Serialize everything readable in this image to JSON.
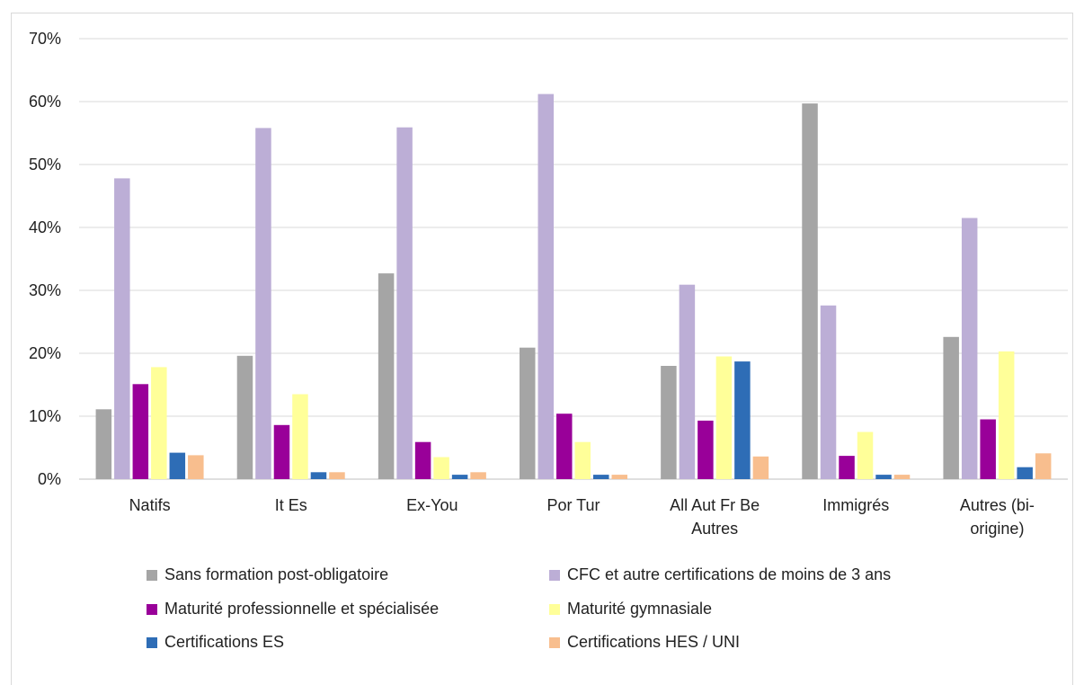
{
  "chart_data": {
    "type": "bar",
    "categories": [
      [
        "Natifs"
      ],
      [
        "It Es"
      ],
      [
        "Ex-You"
      ],
      [
        "Por Tur"
      ],
      [
        "All Aut Fr Be",
        "Autres"
      ],
      [
        "Immigrés"
      ],
      [
        "Autres (bi-",
        "origine)"
      ]
    ],
    "ylim": [
      0,
      0.7
    ],
    "yticks": [
      0,
      0.1,
      0.2,
      0.3,
      0.4,
      0.5,
      0.6,
      0.7
    ],
    "ytick_labels": [
      "0%",
      "10%",
      "20%",
      "30%",
      "40%",
      "50%",
      "60%",
      "70%"
    ],
    "grid": true,
    "legend_position": "bottom",
    "series": [
      {
        "name": "Sans formation post-obligatoire",
        "color": "#a5a5a5",
        "values": [
          0.111,
          0.196,
          0.327,
          0.209,
          0.18,
          0.597,
          0.226
        ]
      },
      {
        "name": "CFC et autre certifications de moins de 3 ans",
        "color": "#bcaed6",
        "values": [
          0.478,
          0.558,
          0.559,
          0.612,
          0.309,
          0.276,
          0.415
        ]
      },
      {
        "name": "Maturité professionnelle et spécialisée",
        "color": "#990099",
        "values": [
          0.151,
          0.086,
          0.059,
          0.104,
          0.093,
          0.037,
          0.095
        ]
      },
      {
        "name": "Maturité gymnasiale",
        "color": "#ffff99",
        "values": [
          0.178,
          0.135,
          0.035,
          0.059,
          0.195,
          0.075,
          0.203
        ]
      },
      {
        "name": "Certifications ES",
        "color": "#2e6db6",
        "values": [
          0.042,
          0.011,
          0.007,
          0.007,
          0.187,
          0.007,
          0.019
        ]
      },
      {
        "name": "Certifications HES / UNI",
        "color": "#f8be8e",
        "values": [
          0.038,
          0.011,
          0.011,
          0.007,
          0.036,
          0.007,
          0.041
        ]
      }
    ]
  }
}
